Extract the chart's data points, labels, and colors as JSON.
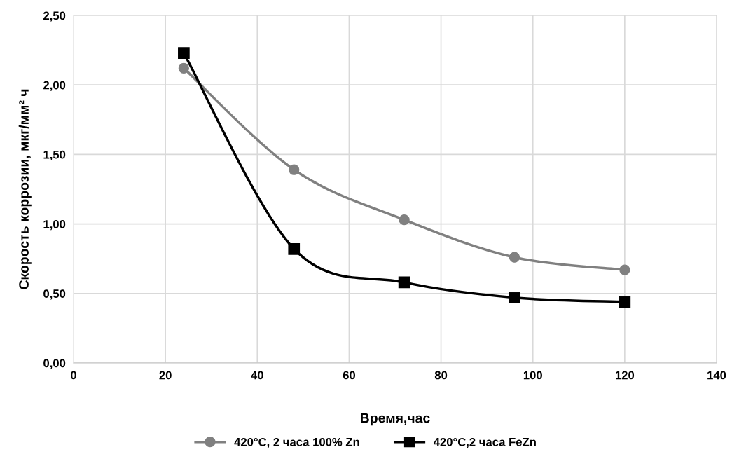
{
  "chart_data": {
    "type": "line",
    "xlabel": "Время,час",
    "ylabel": "Скорость коррозии, мкг/мм² ч",
    "x": [
      24,
      48,
      72,
      96,
      120
    ],
    "series": [
      {
        "name": "420°C, 2 часа 100% Zn",
        "color": "#808080",
        "marker": "circle",
        "values": [
          2.12,
          1.39,
          1.03,
          0.76,
          0.67
        ]
      },
      {
        "name": "420°C,2 часа FeZn",
        "color": "#000000",
        "marker": "square",
        "values": [
          2.23,
          0.82,
          0.58,
          0.47,
          0.44
        ]
      }
    ],
    "xlim": [
      0,
      140
    ],
    "xticks": [
      0,
      20,
      40,
      60,
      80,
      100,
      120,
      140
    ],
    "ylim": [
      0,
      2.5
    ],
    "yticks": [
      {
        "value": 0,
        "label": "0,00"
      },
      {
        "value": 0.5,
        "label": "0,50"
      },
      {
        "value": 1.0,
        "label": "1,00"
      },
      {
        "value": 1.5,
        "label": "1,50"
      },
      {
        "value": 2.0,
        "label": "2,00"
      },
      {
        "value": 2.5,
        "label": "2,50"
      }
    ],
    "grid": true,
    "legend": "bottom",
    "line_style": "solid"
  }
}
